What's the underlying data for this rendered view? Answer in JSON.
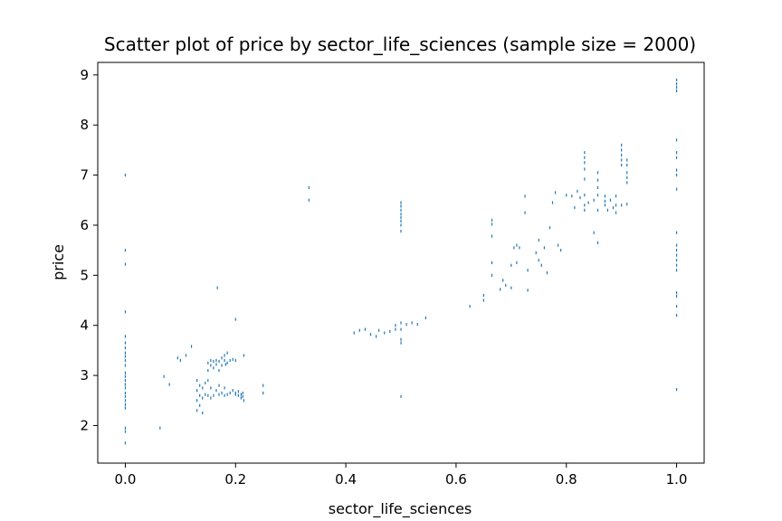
{
  "chart_data": {
    "type": "scatter",
    "title": "Scatter plot of price by sector_life_sciences (sample size = 2000)",
    "xlabel": "sector_life_sciences",
    "ylabel": "price",
    "xlim": [
      -0.05,
      1.05
    ],
    "ylim": [
      1.25,
      9.25
    ],
    "xticks": [
      {
        "value": 0.0,
        "label": "0.0"
      },
      {
        "value": 0.2,
        "label": "0.2"
      },
      {
        "value": 0.4,
        "label": "0.4"
      },
      {
        "value": 0.6,
        "label": "0.6"
      },
      {
        "value": 0.8,
        "label": "0.8"
      },
      {
        "value": 1.0,
        "label": "1.0"
      }
    ],
    "yticks": [
      {
        "value": 2,
        "label": "2"
      },
      {
        "value": 3,
        "label": "3"
      },
      {
        "value": 4,
        "label": "4"
      },
      {
        "value": 5,
        "label": "5"
      },
      {
        "value": 6,
        "label": "6"
      },
      {
        "value": 7,
        "label": "7"
      },
      {
        "value": 8,
        "label": "8"
      },
      {
        "value": 9,
        "label": "9"
      }
    ],
    "grid": false,
    "color": "#1f77b4",
    "points": [
      [
        0,
        7.0
      ],
      [
        0,
        5.5
      ],
      [
        0,
        5.22
      ],
      [
        0,
        4.27
      ],
      [
        0,
        3.78
      ],
      [
        0,
        3.65
      ],
      [
        0,
        3.55
      ],
      [
        0,
        3.45
      ],
      [
        0,
        3.38
      ],
      [
        0,
        3.3
      ],
      [
        0,
        3.2
      ],
      [
        0,
        3.05
      ],
      [
        0,
        2.98
      ],
      [
        0,
        2.9
      ],
      [
        0,
        2.82
      ],
      [
        0,
        2.75
      ],
      [
        0,
        2.65
      ],
      [
        0,
        2.58
      ],
      [
        0,
        2.5
      ],
      [
        0,
        2.42
      ],
      [
        0,
        2.35
      ],
      [
        0,
        1.95
      ],
      [
        0,
        1.88
      ],
      [
        0,
        1.65
      ],
      [
        0.063,
        1.95
      ],
      [
        0.07,
        2.98
      ],
      [
        0.08,
        2.82
      ],
      [
        0.095,
        3.35
      ],
      [
        0.1,
        3.3
      ],
      [
        0.11,
        3.4
      ],
      [
        0.12,
        3.58
      ],
      [
        0.13,
        2.3
      ],
      [
        0.13,
        2.5
      ],
      [
        0.13,
        2.7
      ],
      [
        0.13,
        2.9
      ],
      [
        0.135,
        2.4
      ],
      [
        0.135,
        2.6
      ],
      [
        0.135,
        2.8
      ],
      [
        0.14,
        2.25
      ],
      [
        0.14,
        2.55
      ],
      [
        0.14,
        2.75
      ],
      [
        0.145,
        2.62
      ],
      [
        0.145,
        2.85
      ],
      [
        0.15,
        2.6
      ],
      [
        0.15,
        2.9
      ],
      [
        0.15,
        3.1
      ],
      [
        0.15,
        3.25
      ],
      [
        0.155,
        2.55
      ],
      [
        0.155,
        2.75
      ],
      [
        0.155,
        3.2
      ],
      [
        0.155,
        3.3
      ],
      [
        0.16,
        2.6
      ],
      [
        0.16,
        3.15
      ],
      [
        0.16,
        3.28
      ],
      [
        0.165,
        2.7
      ],
      [
        0.165,
        3.3
      ],
      [
        0.165,
        3.22
      ],
      [
        0.17,
        2.62
      ],
      [
        0.17,
        2.8
      ],
      [
        0.17,
        3.1
      ],
      [
        0.17,
        3.28
      ],
      [
        0.175,
        2.65
      ],
      [
        0.175,
        3.2
      ],
      [
        0.175,
        3.35
      ],
      [
        0.18,
        2.6
      ],
      [
        0.18,
        2.75
      ],
      [
        0.18,
        3.3
      ],
      [
        0.18,
        3.4
      ],
      [
        0.182,
        3.22
      ],
      [
        0.185,
        2.62
      ],
      [
        0.185,
        3.25
      ],
      [
        0.185,
        3.45
      ],
      [
        0.19,
        2.65
      ],
      [
        0.19,
        3.3
      ],
      [
        0.195,
        2.7
      ],
      [
        0.195,
        3.32
      ],
      [
        0.2,
        2.62
      ],
      [
        0.2,
        2.65
      ],
      [
        0.2,
        3.3
      ],
      [
        0.205,
        2.6
      ],
      [
        0.205,
        2.68
      ],
      [
        0.21,
        2.55
      ],
      [
        0.21,
        2.62
      ],
      [
        0.213,
        2.65
      ],
      [
        0.213,
        2.58
      ],
      [
        0.215,
        2.5
      ],
      [
        0.215,
        3.4
      ],
      [
        0.2,
        4.12
      ],
      [
        0.167,
        4.75
      ],
      [
        0.25,
        2.8
      ],
      [
        0.25,
        2.65
      ],
      [
        0.333,
        6.75
      ],
      [
        0.333,
        6.5
      ],
      [
        0.415,
        3.85
      ],
      [
        0.425,
        3.9
      ],
      [
        0.435,
        3.92
      ],
      [
        0.445,
        3.82
      ],
      [
        0.455,
        3.78
      ],
      [
        0.46,
        3.9
      ],
      [
        0.47,
        3.85
      ],
      [
        0.48,
        3.88
      ],
      [
        0.49,
        4.0
      ],
      [
        0.49,
        3.92
      ],
      [
        0.5,
        6.45
      ],
      [
        0.5,
        6.38
      ],
      [
        0.5,
        6.3
      ],
      [
        0.5,
        6.22
      ],
      [
        0.5,
        6.15
      ],
      [
        0.5,
        6.08
      ],
      [
        0.5,
        6.0
      ],
      [
        0.5,
        5.88
      ],
      [
        0.5,
        4.05
      ],
      [
        0.5,
        3.92
      ],
      [
        0.5,
        3.72
      ],
      [
        0.5,
        3.65
      ],
      [
        0.5,
        2.58
      ],
      [
        0.51,
        4.02
      ],
      [
        0.52,
        4.05
      ],
      [
        0.53,
        4.02
      ],
      [
        0.545,
        4.15
      ],
      [
        0.625,
        4.38
      ],
      [
        0.65,
        4.5
      ],
      [
        0.65,
        4.6
      ],
      [
        0.665,
        6.1
      ],
      [
        0.665,
        6.02
      ],
      [
        0.665,
        5.78
      ],
      [
        0.665,
        5.25
      ],
      [
        0.665,
        5.0
      ],
      [
        0.68,
        4.72
      ],
      [
        0.685,
        4.9
      ],
      [
        0.69,
        4.8
      ],
      [
        0.7,
        5.2
      ],
      [
        0.7,
        4.75
      ],
      [
        0.705,
        5.55
      ],
      [
        0.71,
        5.6
      ],
      [
        0.71,
        5.25
      ],
      [
        0.715,
        5.55
      ],
      [
        0.725,
        6.58
      ],
      [
        0.725,
        6.25
      ],
      [
        0.73,
        5.1
      ],
      [
        0.73,
        4.7
      ],
      [
        0.745,
        5.45
      ],
      [
        0.75,
        5.7
      ],
      [
        0.75,
        5.3
      ],
      [
        0.755,
        5.2
      ],
      [
        0.76,
        5.55
      ],
      [
        0.765,
        5.05
      ],
      [
        0.77,
        5.95
      ],
      [
        0.775,
        6.45
      ],
      [
        0.78,
        6.65
      ],
      [
        0.785,
        5.6
      ],
      [
        0.79,
        5.5
      ],
      [
        0.8,
        6.6
      ],
      [
        0.81,
        6.58
      ],
      [
        0.815,
        6.35
      ],
      [
        0.82,
        6.68
      ],
      [
        0.825,
        6.55
      ],
      [
        0.833,
        7.45
      ],
      [
        0.833,
        7.35
      ],
      [
        0.833,
        7.25
      ],
      [
        0.833,
        7.12
      ],
      [
        0.833,
        6.92
      ],
      [
        0.833,
        6.6
      ],
      [
        0.833,
        6.4
      ],
      [
        0.833,
        6.3
      ],
      [
        0.84,
        6.45
      ],
      [
        0.85,
        5.85
      ],
      [
        0.85,
        6.5
      ],
      [
        0.857,
        7.05
      ],
      [
        0.857,
        6.9
      ],
      [
        0.857,
        6.75
      ],
      [
        0.857,
        6.6
      ],
      [
        0.857,
        6.3
      ],
      [
        0.857,
        5.65
      ],
      [
        0.87,
        6.58
      ],
      [
        0.87,
        6.48
      ],
      [
        0.87,
        6.4
      ],
      [
        0.875,
        6.3
      ],
      [
        0.88,
        6.5
      ],
      [
        0.885,
        6.35
      ],
      [
        0.89,
        6.58
      ],
      [
        0.89,
        6.4
      ],
      [
        0.89,
        6.25
      ],
      [
        0.9,
        7.6
      ],
      [
        0.9,
        7.5
      ],
      [
        0.9,
        7.4
      ],
      [
        0.9,
        7.3
      ],
      [
        0.9,
        7.2
      ],
      [
        0.9,
        6.4
      ],
      [
        0.91,
        7.3
      ],
      [
        0.91,
        7.2
      ],
      [
        0.91,
        7.05
      ],
      [
        0.91,
        6.95
      ],
      [
        0.91,
        6.85
      ],
      [
        0.91,
        6.42
      ],
      [
        1,
        8.9
      ],
      [
        1,
        8.82
      ],
      [
        1,
        8.75
      ],
      [
        1,
        8.68
      ],
      [
        1,
        7.7
      ],
      [
        1,
        7.45
      ],
      [
        1,
        7.35
      ],
      [
        1,
        7.1
      ],
      [
        1,
        7.0
      ],
      [
        1,
        6.72
      ],
      [
        1,
        5.85
      ],
      [
        1,
        5.6
      ],
      [
        1,
        5.5
      ],
      [
        1,
        5.4
      ],
      [
        1,
        5.3
      ],
      [
        1,
        5.2
      ],
      [
        1,
        5.1
      ],
      [
        1,
        4.65
      ],
      [
        1,
        4.58
      ],
      [
        1,
        4.38
      ],
      [
        1,
        4.2
      ],
      [
        1,
        2.72
      ]
    ]
  }
}
